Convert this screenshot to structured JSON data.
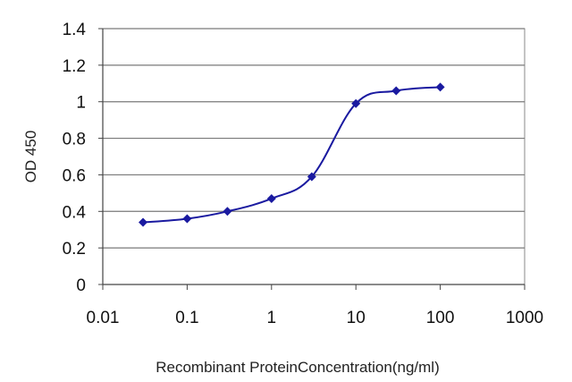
{
  "chart_data": {
    "type": "line",
    "xscale": "log",
    "xlabel": "Recombinant ProteinConcentration(ng/ml)",
    "ylabel": "OD 450",
    "xlim": [
      0.01,
      1000
    ],
    "ylim": [
      0,
      1.4
    ],
    "x_ticks": [
      0.01,
      0.1,
      1,
      10,
      100,
      1000
    ],
    "x_tick_labels": [
      "0.01",
      "0.1",
      "1",
      "10",
      "100",
      "1000"
    ],
    "y_ticks": [
      0,
      0.2,
      0.4,
      0.6,
      0.8,
      1,
      1.2,
      1.4
    ],
    "y_tick_labels": [
      "0",
      "0.2",
      "0.4",
      "0.6",
      "0.8",
      "1",
      "1.2",
      "1.4"
    ],
    "grid": "horizontal",
    "legend": "none",
    "series": [
      {
        "color": "#1a1aa0",
        "x": [
          0.03,
          0.1,
          0.3,
          1,
          3,
          10,
          30,
          100
        ],
        "y": [
          0.34,
          0.36,
          0.4,
          0.47,
          0.59,
          0.99,
          1.06,
          1.08
        ]
      }
    ]
  }
}
